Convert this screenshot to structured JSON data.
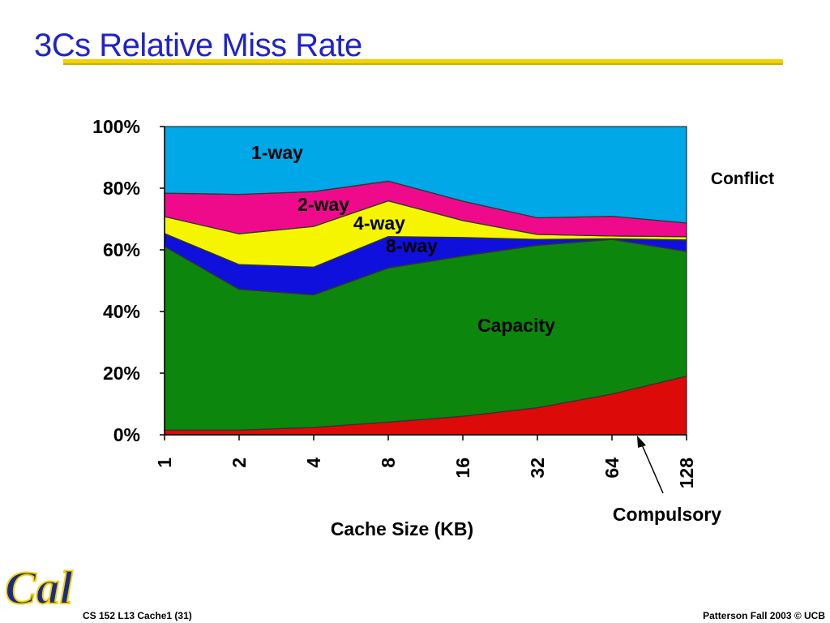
{
  "slide": {
    "title": "3Cs Relative Miss Rate",
    "footer_left": "CS 152 L13 Cache1 (31)",
    "footer_right": "Patterson Fall 2003 © UCB",
    "logo_text": "Cal"
  },
  "chart_data": {
    "type": "area",
    "stacked": true,
    "title": "",
    "xlabel": "Cache Size (KB)",
    "ylabel": "",
    "categories": [
      "1",
      "2",
      "4",
      "8",
      "16",
      "32",
      "64",
      "128"
    ],
    "ylim": [
      0,
      100
    ],
    "y_ticks": [
      "0%",
      "20%",
      "40%",
      "60%",
      "80%",
      "100%"
    ],
    "series": [
      {
        "name": "Compulsory",
        "color": "#dd0a0a",
        "values": [
          1.5,
          1.5,
          2.4,
          4.1,
          6.0,
          8.8,
          13.2,
          19.0
        ]
      },
      {
        "name": "Capacity",
        "color": "#0c860c",
        "values": [
          59.6,
          45.7,
          43.0,
          50.0,
          52.0,
          52.7,
          50.2,
          40.5
        ]
      },
      {
        "name": "8-way",
        "color": "#1010dd",
        "values": [
          4.2,
          8.0,
          9.0,
          10.2,
          6.0,
          1.9,
          0.2,
          3.7
        ]
      },
      {
        "name": "4-way",
        "color": "#f5f500",
        "values": [
          5.5,
          10.0,
          13.2,
          11.6,
          5.5,
          1.6,
          0.9,
          1.1
        ]
      },
      {
        "name": "2-way",
        "color": "#ef0a8c",
        "values": [
          7.6,
          12.8,
          11.3,
          6.4,
          6.3,
          5.4,
          6.4,
          4.4
        ]
      },
      {
        "name": "1-way",
        "color": "#00a8e8",
        "values": [
          21.6,
          22.0,
          21.1,
          17.7,
          24.2,
          29.6,
          29.1,
          31.3
        ]
      }
    ],
    "series_labels": [
      "1-way",
      "2-way",
      "4-way",
      "8-way",
      "Capacity"
    ],
    "annotations": {
      "conflict": "Conflict",
      "compulsory": "Compulsory"
    },
    "grid": false
  }
}
